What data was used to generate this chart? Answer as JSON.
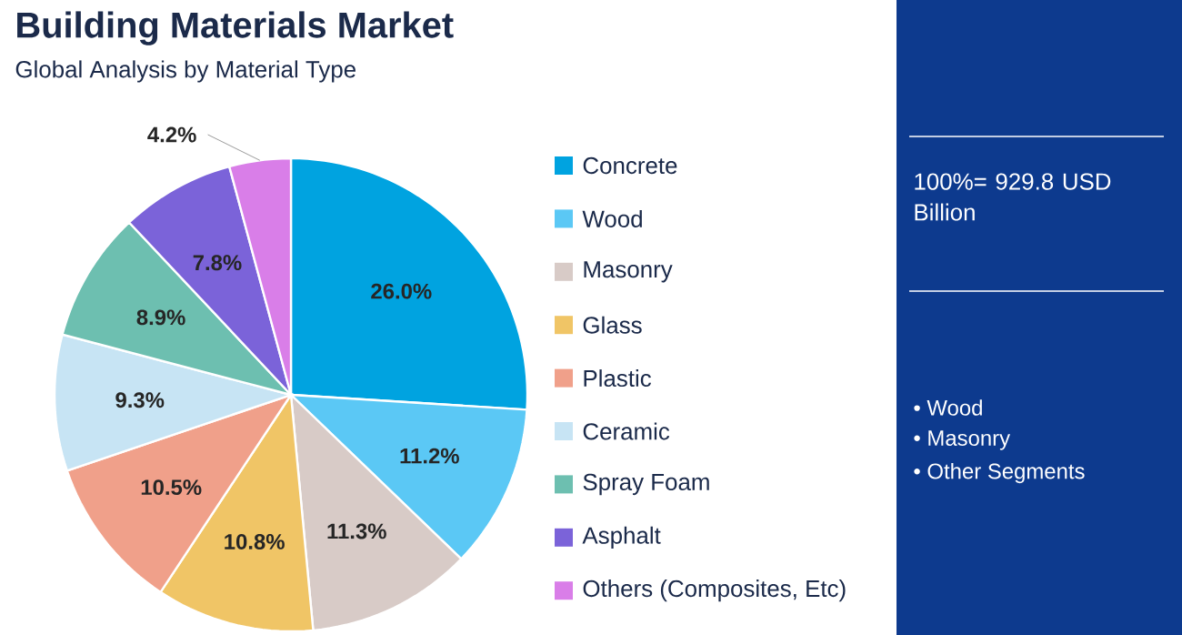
{
  "chart_data": {
    "type": "pie",
    "title": "Building Materials Market",
    "subtitle": "Global Analysis by Material Type",
    "categories": [
      "Concrete",
      "Wood",
      "Masonry",
      "Glass",
      "Plastic",
      "Ceramic",
      "Spray Foam",
      "Asphalt",
      "Others (Composites, Etc)"
    ],
    "values": [
      26.0,
      11.2,
      11.3,
      10.8,
      10.5,
      9.3,
      8.9,
      7.8,
      4.2
    ],
    "colors": [
      "#00a3e0",
      "#5bc8f5",
      "#d8cbc7",
      "#f0c566",
      "#f0a08a",
      "#c7e4f4",
      "#6dbfb0",
      "#7b63d9",
      "#d97ee8"
    ],
    "value_labels": [
      "26.0%",
      "11.2%",
      "11.3%",
      "10.8%",
      "10.5%",
      "9.3%",
      "8.9%",
      "7.8%",
      "4.2%"
    ],
    "legend": "right",
    "annotations": [
      "100%= 929.8 USD Billion",
      "• Wood",
      "• Masonry",
      "• Other Segments"
    ]
  }
}
